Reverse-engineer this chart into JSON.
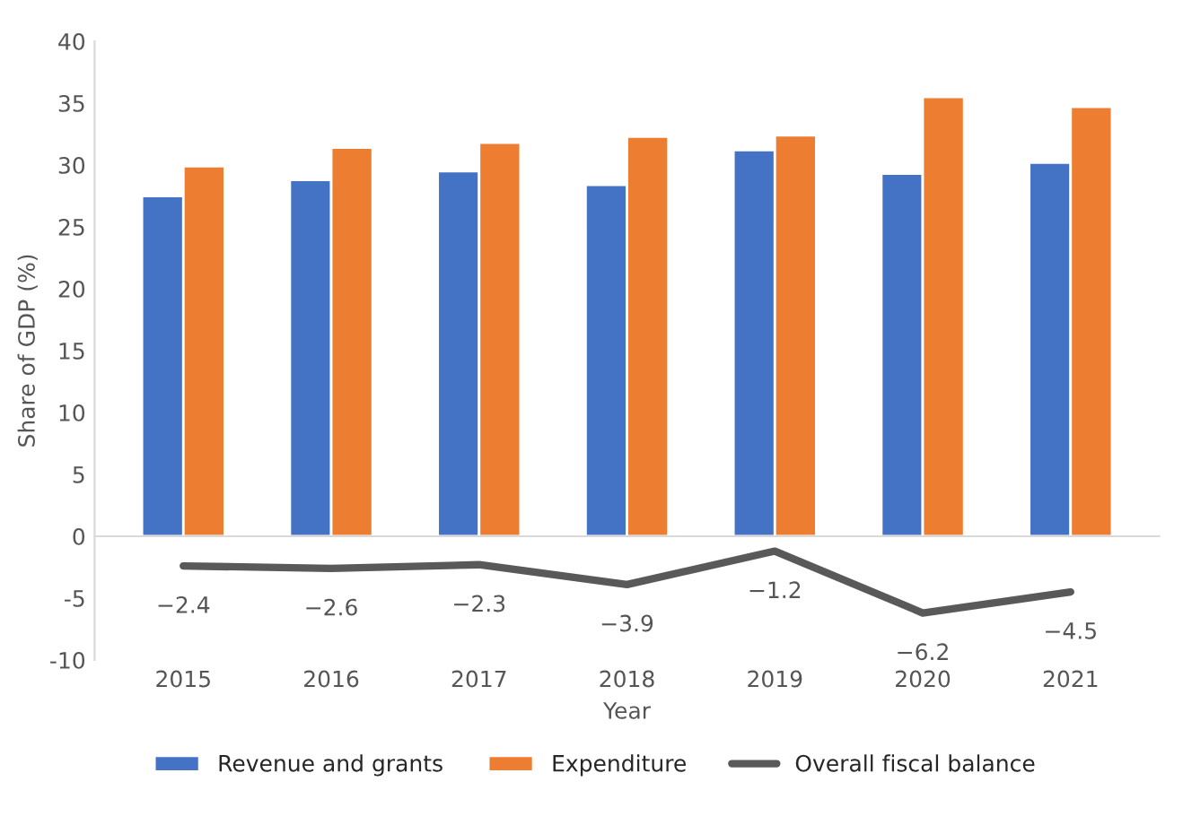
{
  "chart_data": {
    "type": "bar",
    "xlabel": "Year",
    "ylabel": "Share of GDP (%)",
    "categories": [
      "2015",
      "2016",
      "2017",
      "2018",
      "2019",
      "2020",
      "2021"
    ],
    "series": [
      {
        "name": "Revenue and grants",
        "color": "#4472c4",
        "values": [
          27.5,
          28.8,
          29.5,
          28.4,
          31.2,
          29.3,
          30.2
        ]
      },
      {
        "name": "Expenditure",
        "color": "#ed7d31",
        "values": [
          29.9,
          31.4,
          31.8,
          32.3,
          32.4,
          35.5,
          34.7
        ]
      },
      {
        "name": "Overall fiscal balance",
        "type": "line",
        "color": "#595959",
        "values": [
          -2.4,
          -2.6,
          -2.3,
          -3.9,
          -1.2,
          -6.2,
          -4.5
        ],
        "value_labels": [
          "−2.4",
          "−2.6",
          "−2.3",
          "−3.9",
          "−1.2",
          "−6.2",
          "−4.5"
        ]
      }
    ],
    "ylim": [
      -10,
      40
    ],
    "yticks": [
      -10,
      -5,
      0,
      5,
      10,
      15,
      20,
      25,
      30,
      35,
      40
    ],
    "legend": "bottom"
  }
}
